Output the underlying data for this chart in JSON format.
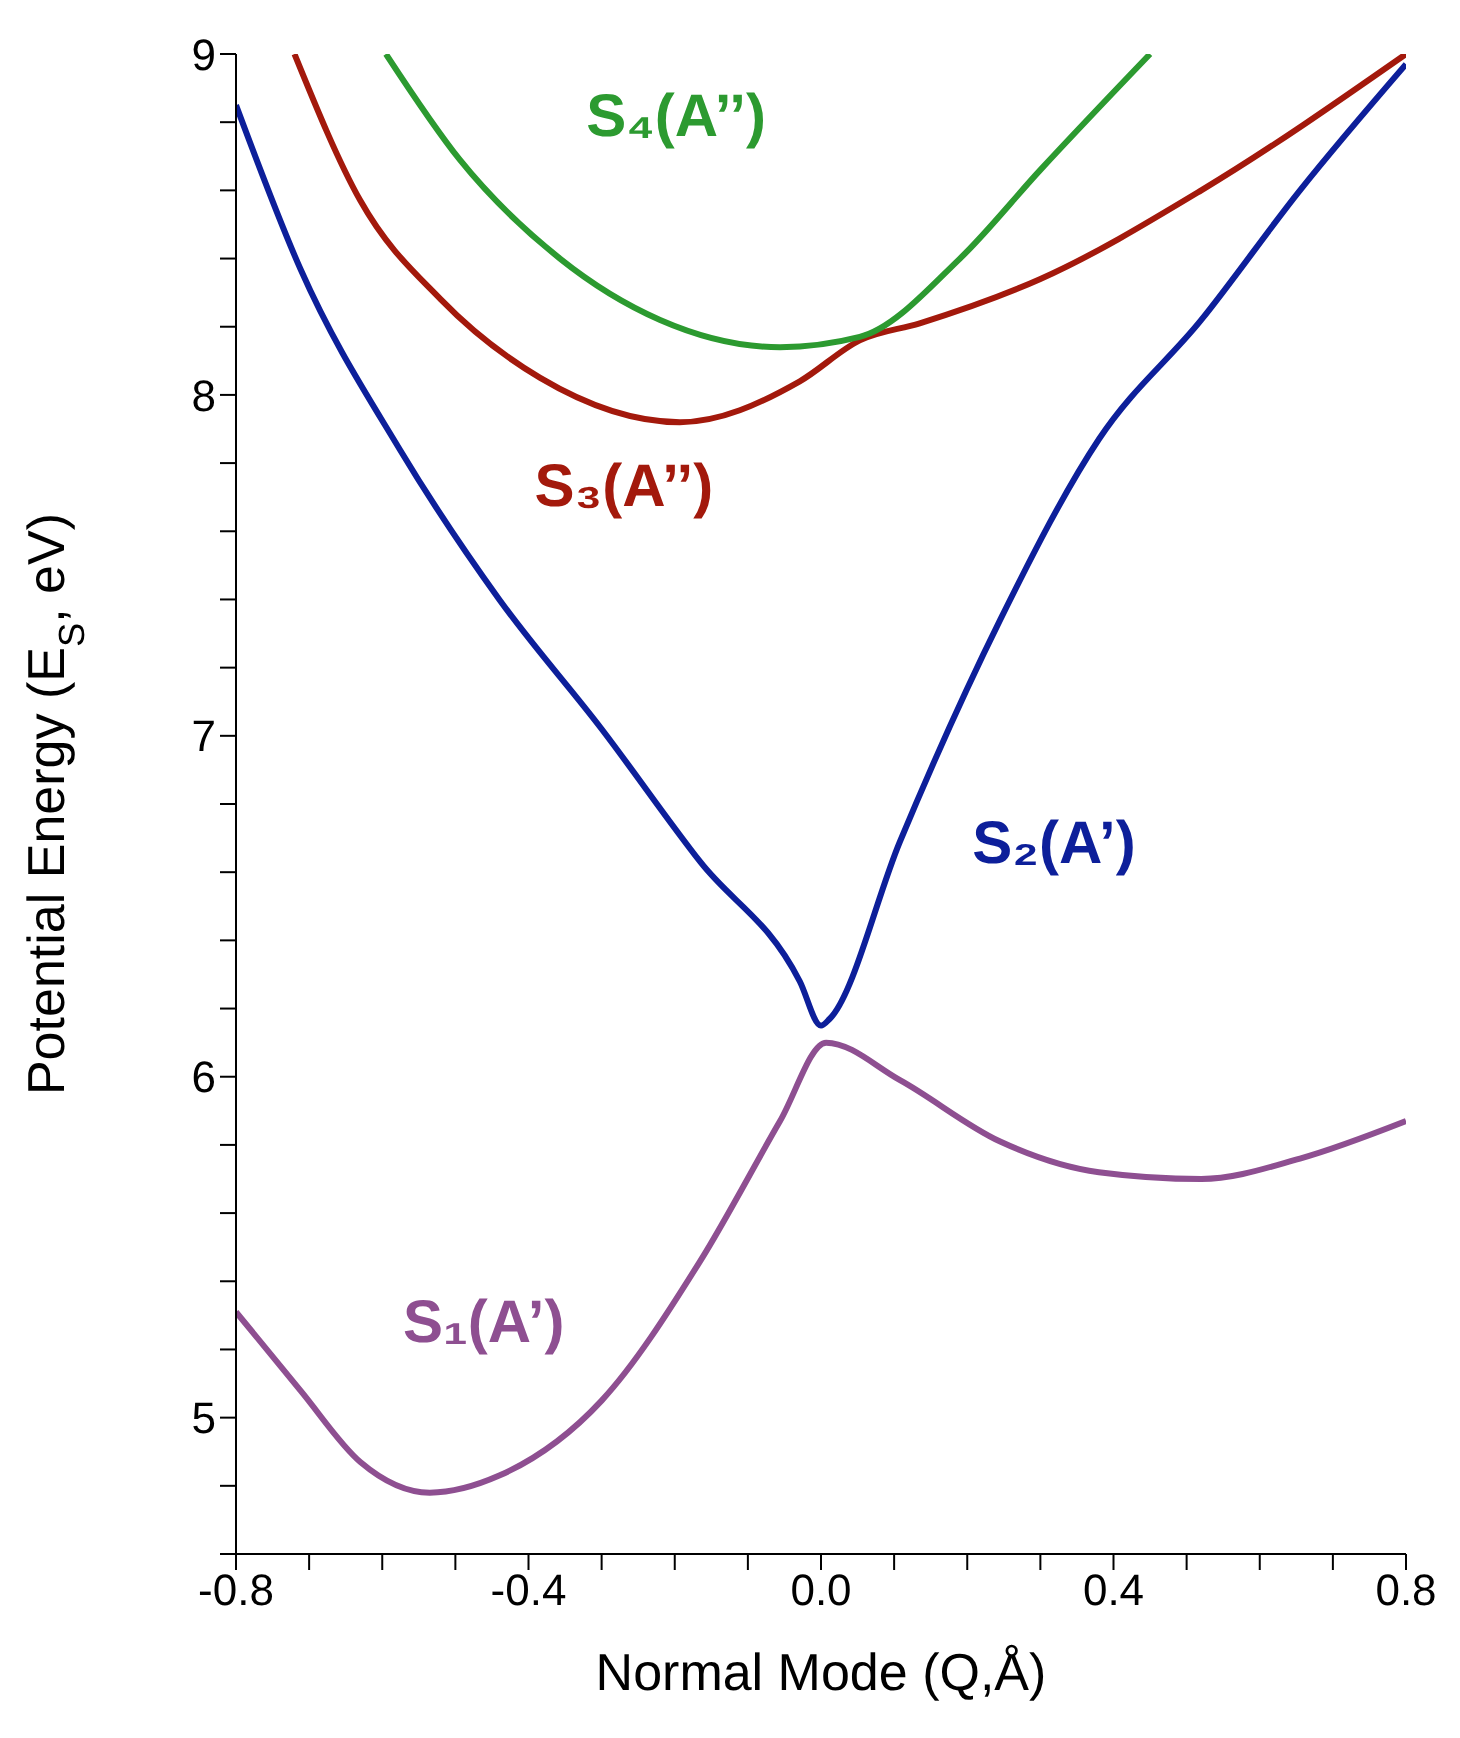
{
  "chart_data": {
    "type": "line",
    "xlabel": "Normal Mode (Q,Å)",
    "ylabel": "Potential Energy (E$_{S}$, eV)",
    "xlim": [
      -0.8,
      0.8
    ],
    "ylim": [
      4.6,
      9
    ],
    "xticks": [
      -0.8,
      {
        "value": -0.7,
        "label": null
      },
      {
        "value": -0.6,
        "label": null
      },
      {
        "value": -0.5,
        "label": null
      },
      {
        "value": -0.4,
        "label": "-0.4"
      },
      {
        "value": -0.3,
        "label": null
      },
      {
        "value": -0.2,
        "label": null
      },
      {
        "value": -0.1,
        "label": null
      },
      {
        "value": 0,
        "label": "0.0"
      },
      {
        "value": 0.1,
        "label": null
      },
      {
        "value": 0.2,
        "label": null
      },
      {
        "value": 0.3,
        "label": null
      },
      {
        "value": 0.4,
        "label": "0.4"
      },
      {
        "value": 0.5,
        "label": null
      },
      {
        "value": 0.6,
        "label": null
      },
      {
        "value": 0.7,
        "label": null
      },
      {
        "value": 0.8,
        "label": "0.8"
      }
    ],
    "yticks": [
      {
        "value": 4.6,
        "label": null
      },
      {
        "value": 4.8,
        "label": null
      },
      5,
      {
        "value": 5.2,
        "label": null
      },
      {
        "value": 5.4,
        "label": null
      },
      {
        "value": 5.6,
        "label": null
      },
      {
        "value": 5.8,
        "label": null
      },
      6,
      {
        "value": 6.2,
        "label": null
      },
      {
        "value": 6.4,
        "label": null
      },
      {
        "value": 6.6,
        "label": null
      },
      {
        "value": 6.8,
        "label": null
      },
      7,
      {
        "value": 7.2,
        "label": null
      },
      {
        "value": 7.4,
        "label": null
      },
      {
        "value": 7.6,
        "label": null
      },
      {
        "value": 7.8,
        "label": null
      },
      8,
      {
        "value": 8.2,
        "label": null
      },
      {
        "value": 8.4,
        "label": null
      },
      {
        "value": 8.6,
        "label": null
      },
      {
        "value": 8.8,
        "label": null
      },
      9
    ],
    "grid": false,
    "legend": false,
    "marker": "none",
    "line_style": "solid",
    "series": [
      {
        "name": "S₁(A’)",
        "color": "#8e4f91",
        "x": [
          -0.8,
          -0.712,
          -0.63,
          -0.535,
          -0.44,
          -0.3,
          -0.165,
          -0.056,
          0.007,
          0.108,
          0.245,
          0.38,
          0.52,
          0.655,
          0.8
        ],
        "values": [
          5.31,
          5.08,
          4.87,
          4.78,
          4.83,
          5.05,
          5.46,
          5.87,
          6.1,
          5.99,
          5.81,
          5.72,
          5.7,
          5.76,
          5.87
        ]
      },
      {
        "name": "S₂(A’)",
        "color": "#0d1f9a",
        "x": [
          -0.8,
          -0.712,
          -0.576,
          -0.44,
          -0.3,
          -0.165,
          -0.029,
          0.0,
          0.012,
          0.108,
          0.245,
          0.38,
          0.52,
          0.655,
          0.8
        ],
        "values": [
          8.85,
          8.37,
          7.84,
          7.4,
          7.02,
          6.63,
          6.28,
          6.15,
          6.17,
          6.69,
          7.34,
          7.87,
          8.22,
          8.6,
          8.97
        ]
      },
      {
        "name": "S₃(A’’)",
        "color": "#a3190c",
        "x": [
          -0.72,
          -0.63,
          -0.52,
          -0.384,
          -0.193,
          -0.029,
          0.053,
          0.135,
          0.3,
          0.52,
          0.8
        ],
        "values": [
          9,
          8.57,
          8.28,
          8.05,
          7.92,
          8.04,
          8.16,
          8.21,
          8.34,
          8.6,
          9
        ]
      },
      {
        "name": "S₄(A’’)",
        "color": "#2c9a30",
        "x": [
          -0.595,
          -0.494,
          -0.357,
          -0.22,
          -0.056,
          0.053,
          0.19,
          0.3,
          0.45
        ],
        "values": [
          9,
          8.69,
          8.4,
          8.22,
          8.14,
          8.17,
          8.4,
          8.66,
          9
        ]
      }
    ]
  }
}
